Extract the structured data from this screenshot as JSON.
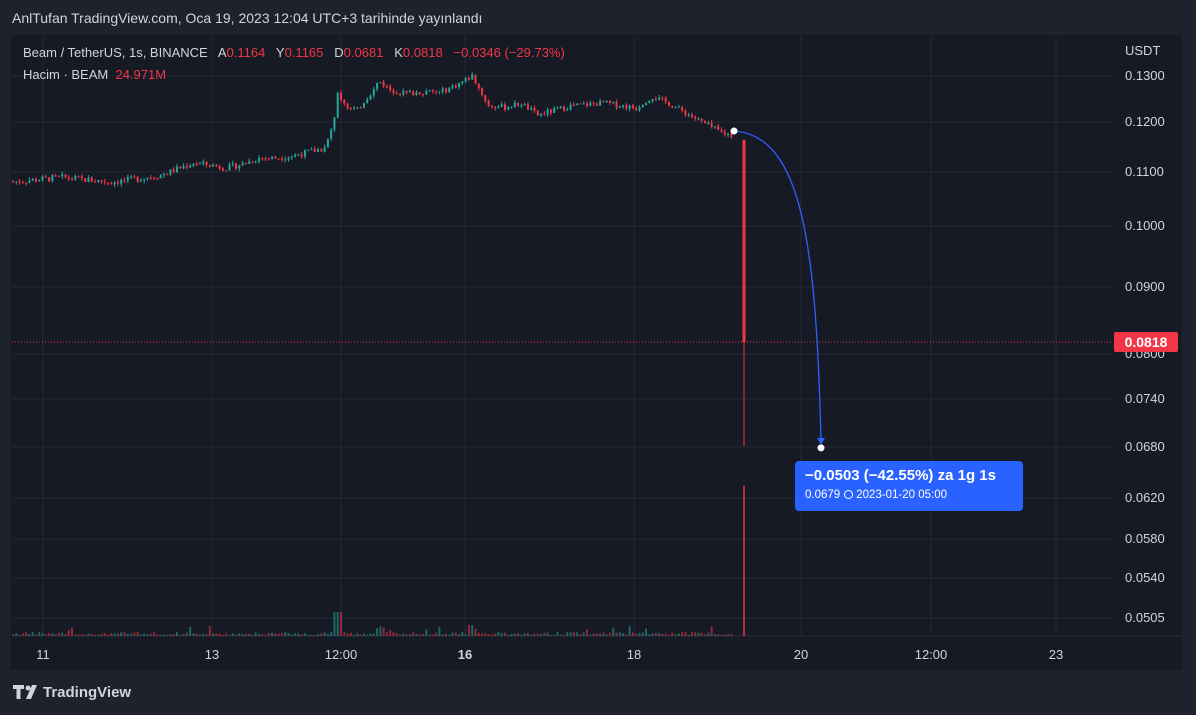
{
  "header": {
    "published": "AnlTufan TradingView.com, Oca 19, 2023 12:04 UTC+3 tarihinde yayınlandı"
  },
  "legend": {
    "symbol": "Beam / TetherUS, 1s, BINANCE",
    "open_label": "A",
    "open": "0.1164",
    "high_label": "Y",
    "high": "0.1165",
    "low_label": "D",
    "low": "0.0681",
    "close_label": "K",
    "close": "0.0818",
    "change": "−0.0346 (−29.73%)",
    "volume_label": "Hacim · BEAM",
    "volume": "24.971M"
  },
  "price_axis": {
    "currency": "USDT",
    "current_price_label": "0.0818"
  },
  "measure": {
    "main": "−0.0503 (−42.55%) za 1g 1s",
    "price": "0.0679",
    "date": "2023-01-20  05:00"
  },
  "footer": {
    "brand": "TradingView"
  },
  "colors": {
    "up": "#26a69a",
    "down": "#f23645",
    "bg": "#161a25",
    "grid": "#242835",
    "measure": "#2962ff"
  },
  "chart_data": {
    "type": "candlestick",
    "symbol": "Beam / TetherUS",
    "interval": "1s",
    "exchange": "BINANCE",
    "y_ticks": [
      "0.1300",
      "0.1200",
      "0.1100",
      "0.1000",
      "0.0900",
      "0.0800",
      "0.0740",
      "0.0680",
      "0.0620",
      "0.0580",
      "0.0540",
      "0.0505"
    ],
    "x_ticks": [
      "11",
      "13",
      "12:00",
      "16",
      "18",
      "20",
      "12:00",
      "23"
    ],
    "x_tick_bold": [
      false,
      false,
      false,
      true,
      false,
      false,
      false,
      false
    ],
    "close_path": [
      [
        0,
        0.1082
      ],
      [
        3,
        0.109
      ],
      [
        6,
        0.1081
      ],
      [
        9,
        0.1094
      ],
      [
        10,
        0.1106
      ],
      [
        11,
        0.1118
      ],
      [
        12,
        0.1114
      ],
      [
        13,
        0.1108
      ],
      [
        14,
        0.1116
      ],
      [
        15,
        0.1128
      ],
      [
        16,
        0.1128
      ],
      [
        17,
        0.1132
      ],
      [
        18,
        0.114
      ],
      [
        19,
        0.1147
      ],
      [
        19.5,
        0.119
      ],
      [
        19.8,
        0.126
      ],
      [
        20,
        0.125
      ],
      [
        20.5,
        0.123
      ],
      [
        21,
        0.1226
      ],
      [
        21.5,
        0.125
      ],
      [
        22,
        0.127
      ],
      [
        22.3,
        0.129
      ],
      [
        23,
        0.127
      ],
      [
        24,
        0.1262
      ],
      [
        25,
        0.1266
      ],
      [
        26,
        0.1264
      ],
      [
        27,
        0.128
      ],
      [
        28,
        0.13
      ],
      [
        29,
        0.1235
      ],
      [
        30,
        0.1232
      ],
      [
        31,
        0.124
      ],
      [
        32,
        0.1215
      ],
      [
        33,
        0.1225
      ],
      [
        34,
        0.1235
      ],
      [
        35,
        0.1238
      ],
      [
        36,
        0.1242
      ],
      [
        37,
        0.1236
      ],
      [
        38,
        0.123
      ],
      [
        38.5,
        0.1245
      ],
      [
        39,
        0.1255
      ],
      [
        40,
        0.124
      ],
      [
        41,
        0.122
      ],
      [
        42,
        0.12
      ],
      [
        43,
        0.1182
      ],
      [
        43.5,
        0.1176
      ],
      [
        44,
        0.1172
      ]
    ],
    "crash_candle": {
      "open": 0.1164,
      "high": 0.1165,
      "low": 0.0681,
      "close": 0.0818
    },
    "current_price": 0.0818,
    "measure": {
      "from_price": 0.1182,
      "to_price": 0.0679,
      "change": -0.0503,
      "change_pct": -42.55,
      "to_date": "2023-01-20 05:00"
    }
  }
}
